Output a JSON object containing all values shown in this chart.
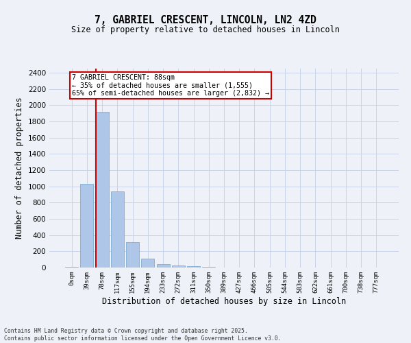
{
  "title_line1": "7, GABRIEL CRESCENT, LINCOLN, LN2 4ZD",
  "title_line2": "Size of property relative to detached houses in Lincoln",
  "xlabel": "Distribution of detached houses by size in Lincoln",
  "ylabel": "Number of detached properties",
  "bar_labels": [
    "0sqm",
    "39sqm",
    "78sqm",
    "117sqm",
    "155sqm",
    "194sqm",
    "233sqm",
    "272sqm",
    "311sqm",
    "350sqm",
    "389sqm",
    "427sqm",
    "466sqm",
    "505sqm",
    "544sqm",
    "583sqm",
    "622sqm",
    "661sqm",
    "700sqm",
    "738sqm",
    "777sqm"
  ],
  "bar_values": [
    10,
    1030,
    1920,
    935,
    315,
    110,
    42,
    28,
    18,
    5,
    2,
    1,
    0,
    0,
    0,
    0,
    0,
    0,
    0,
    0,
    0
  ],
  "bar_color": "#aec6e8",
  "bar_edge_color": "#7aafd4",
  "grid_color": "#c8d4e8",
  "bg_color": "#eef2f8",
  "vline_color": "#cc0000",
  "vline_x": 1.575,
  "annotation_text": "7 GABRIEL CRESCENT: 88sqm\n← 35% of detached houses are smaller (1,555)\n65% of semi-detached houses are larger (2,832) →",
  "annotation_box_color": "#ffffff",
  "annotation_box_edge": "#cc0000",
  "ylim": [
    0,
    2450
  ],
  "yticks": [
    0,
    200,
    400,
    600,
    800,
    1000,
    1200,
    1400,
    1600,
    1800,
    2000,
    2200,
    2400
  ],
  "footnote": "Contains HM Land Registry data © Crown copyright and database right 2025.\nContains public sector information licensed under the Open Government Licence v3.0."
}
